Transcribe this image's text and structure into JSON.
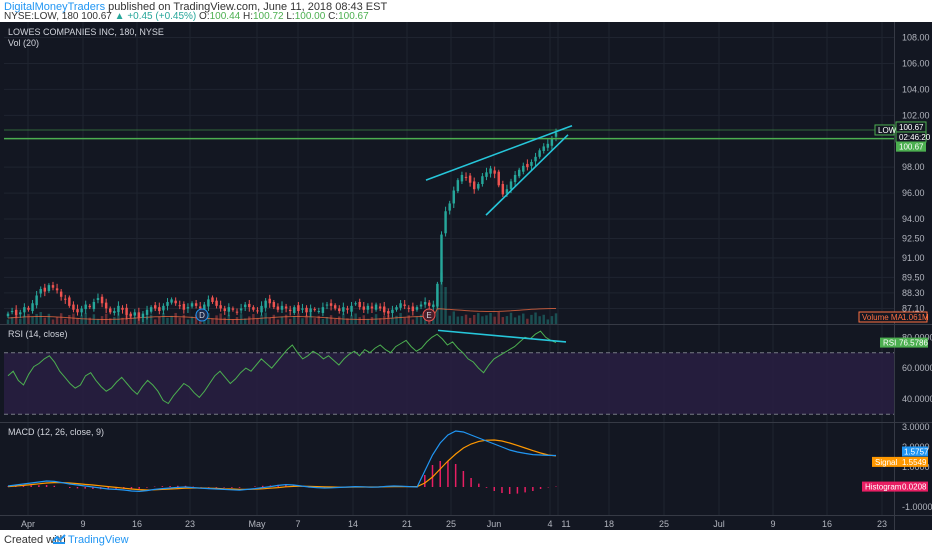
{
  "header": {
    "author": "DigitalMoneyTraders",
    "published": "published on TradingView.com, June 11, 2018 08:43 EST",
    "symbol": "NYSE:LOW, 180",
    "last": "100.67",
    "change": "▲ +0.45 (+0.45%)",
    "o_label": "O:",
    "o_value": "100.44",
    "h_label": "H:",
    "h_value": "100.72",
    "l_label": "L:",
    "l_value": "100.00",
    "c_label": "C:",
    "c_value": "100.67"
  },
  "footer": {
    "created": "Created with",
    "brand": "TradingView"
  },
  "colors": {
    "bg": "#131722",
    "grid": "#1f2430",
    "up": "#26a69a",
    "down": "#ef5350",
    "rsi": "#4caf50",
    "rsi_band": "#2a1f45",
    "macd": "#2196f3",
    "signal": "#ff9800",
    "hist": "#e91e63",
    "trendline": "#26c6da",
    "level": "#4caf50"
  },
  "chart_data": [
    {
      "type": "candlestick",
      "title": "LOWES COMPANIES INC, 180, NYSE",
      "subtitle": "Vol (20)",
      "x_ticks": [
        "Apr",
        "9",
        "16",
        "23",
        "May",
        "7",
        "14",
        "21",
        "25",
        "Jun",
        "4",
        "11",
        "18",
        "25",
        "Jul",
        "9",
        "16",
        "23"
      ],
      "y_ticks": [
        "108.00",
        "106.00",
        "104.00",
        "102.00",
        "98.00",
        "96.00",
        "94.00",
        "92.50",
        "91.00",
        "89.50",
        "88.30",
        "87.10"
      ],
      "ylim": [
        85.9,
        109.2
      ],
      "horizontal_levels": [
        100.87,
        100.2
      ],
      "markers": [
        "D",
        "E"
      ],
      "price_labels": [
        {
          "text": "LOW",
          "kind": "symbol"
        },
        {
          "text": "100.67",
          "kind": "last"
        },
        {
          "text": "02:46:20",
          "kind": "countdown"
        },
        {
          "text": "100.67",
          "kind": "level"
        }
      ],
      "volume_ma_label": "Volume MA",
      "volume_ma_value": "1.061M",
      "approx_closes": [
        86.7,
        86.9,
        86.6,
        86.8,
        87.2,
        87.0,
        87.5,
        88.1,
        88.6,
        88.4,
        88.9,
        88.7,
        88.5,
        88.0,
        87.8,
        87.3,
        87.0,
        86.8,
        87.1,
        87.4,
        87.2,
        87.6,
        87.9,
        87.5,
        87.1,
        86.8,
        86.9,
        87.3,
        87.0,
        86.6,
        86.5,
        86.8,
        86.4,
        86.7,
        87.0,
        87.2,
        87.1,
        86.9,
        87.3,
        87.6,
        87.8,
        87.5,
        87.3,
        87.0,
        87.2,
        87.5,
        87.3,
        87.1,
        87.4,
        87.8,
        87.6,
        87.3,
        87.1,
        86.9,
        87.2,
        87.0,
        86.8,
        87.1,
        87.4,
        87.2,
        87.0,
        86.9,
        87.3,
        87.7,
        87.5,
        87.2,
        87.0,
        87.3,
        87.1,
        86.9,
        87.2,
        86.9,
        87.1,
        86.8,
        87.1,
        87.0,
        86.9,
        87.2,
        87.4,
        87.3,
        87.1,
        86.9,
        87.2,
        87.0,
        87.3,
        87.5,
        87.2,
        87.0,
        87.3,
        87.1,
        87.4,
        87.1,
        86.8,
        86.7,
        87.0,
        87.2,
        87.5,
        87.3,
        87.1,
        86.9,
        87.2,
        87.4,
        87.6,
        87.3,
        87.4,
        89.0,
        92.8,
        94.6,
        95.2,
        96.2,
        97.0,
        97.4,
        97.2,
        96.8,
        96.3,
        96.7,
        97.3,
        97.6,
        97.9,
        97.5,
        96.6,
        95.9,
        96.3,
        96.9,
        97.4,
        97.8,
        98.1,
        98.0,
        98.4,
        98.8,
        99.3,
        99.6,
        99.8,
        100.2,
        100.67
      ],
      "volume_ma": 1.061
    },
    {
      "type": "line",
      "title": "RSI (14, close)",
      "series": [
        {
          "name": "RSI",
          "last": "76.5786"
        }
      ],
      "bands": [
        70,
        30
      ],
      "y_ticks": [
        "80.0000",
        "60.0000",
        "40.0000"
      ],
      "ylim": [
        25,
        88
      ],
      "approx_values": [
        55,
        58,
        52,
        49,
        56,
        61,
        63,
        66,
        68,
        64,
        58,
        54,
        50,
        47,
        49,
        55,
        57,
        52,
        48,
        45,
        47,
        51,
        54,
        50,
        46,
        43,
        48,
        52,
        49,
        45,
        39,
        37,
        42,
        46,
        50,
        48,
        44,
        41,
        45,
        50,
        55,
        58,
        54,
        50,
        53,
        57,
        60,
        58,
        62,
        66,
        63,
        60,
        64,
        68,
        72,
        75,
        70,
        66,
        68,
        71,
        69,
        66,
        68,
        65,
        62,
        66,
        69,
        71,
        68,
        72,
        70,
        73,
        75,
        72,
        70,
        74,
        76,
        78,
        74,
        71,
        73,
        77,
        80,
        82,
        79,
        75,
        77,
        73,
        70,
        66,
        64,
        60,
        57,
        62,
        66,
        68,
        70,
        72,
        74,
        77,
        80,
        79,
        82,
        84,
        80,
        78,
        76.58
      ]
    },
    {
      "type": "line",
      "title": "MACD (12, 26, close, 9)",
      "series": [
        {
          "name": "MACD",
          "last": "1.5757"
        },
        {
          "name": "Signal",
          "last": "1.5549"
        },
        {
          "name": "Histogram",
          "last": "0.0208"
        }
      ],
      "y_ticks": [
        "3.0000",
        "2.0000",
        "1.0000",
        "-1.0000"
      ],
      "ylim": [
        -1.4,
        3.2
      ],
      "approx_macd": [
        0.05,
        0.1,
        0.15,
        0.2,
        0.25,
        0.3,
        0.28,
        0.22,
        0.15,
        0.1,
        0.05,
        0.0,
        -0.05,
        -0.1,
        -0.12,
        -0.15,
        -0.2,
        -0.22,
        -0.18,
        -0.12,
        -0.08,
        -0.05,
        -0.02,
        0.0,
        -0.03,
        -0.06,
        -0.08,
        -0.1,
        -0.12,
        -0.14,
        -0.16,
        -0.12,
        -0.08,
        -0.03,
        0.02,
        0.08,
        0.12,
        0.1,
        0.05,
        0.0,
        -0.03,
        -0.05,
        -0.04,
        -0.02,
        0.0,
        0.02,
        0.01,
        -0.01,
        0.0,
        0.03,
        0.05,
        0.04,
        0.02,
        0.0,
        0.8,
        1.6,
        2.2,
        2.6,
        2.8,
        2.75,
        2.6,
        2.45,
        2.3,
        2.15,
        2.0,
        1.85,
        1.75,
        1.68,
        1.62,
        1.6,
        1.58,
        1.5757
      ],
      "approx_signal": [
        0.02,
        0.05,
        0.08,
        0.12,
        0.16,
        0.2,
        0.22,
        0.22,
        0.2,
        0.17,
        0.13,
        0.1,
        0.06,
        0.02,
        -0.02,
        -0.06,
        -0.1,
        -0.13,
        -0.15,
        -0.14,
        -0.12,
        -0.1,
        -0.08,
        -0.06,
        -0.05,
        -0.05,
        -0.06,
        -0.07,
        -0.09,
        -0.1,
        -0.12,
        -0.12,
        -0.11,
        -0.09,
        -0.06,
        -0.03,
        0.01,
        0.03,
        0.04,
        0.03,
        0.02,
        0.01,
        0.0,
        -0.01,
        -0.01,
        0.0,
        0.0,
        0.0,
        0.0,
        0.01,
        0.02,
        0.02,
        0.02,
        0.02,
        0.2,
        0.5,
        0.9,
        1.3,
        1.65,
        1.95,
        2.15,
        2.28,
        2.34,
        2.35,
        2.3,
        2.2,
        2.08,
        1.95,
        1.82,
        1.7,
        1.6,
        1.5549
      ],
      "approx_histogram": [
        0.03,
        0.05,
        0.07,
        0.08,
        0.09,
        0.1,
        0.06,
        0.0,
        -0.05,
        -0.07,
        -0.08,
        -0.1,
        -0.11,
        -0.12,
        -0.1,
        -0.09,
        -0.1,
        -0.09,
        -0.03,
        0.02,
        0.04,
        0.05,
        0.06,
        0.06,
        0.02,
        -0.01,
        -0.02,
        -0.03,
        -0.03,
        -0.04,
        -0.04,
        0.0,
        0.03,
        0.06,
        0.08,
        0.11,
        0.11,
        0.07,
        0.01,
        -0.03,
        -0.05,
        -0.06,
        -0.04,
        -0.01,
        0.01,
        0.02,
        0.01,
        -0.01,
        0.0,
        0.02,
        0.03,
        0.02,
        0.0,
        -0.02,
        0.6,
        1.1,
        1.3,
        1.3,
        1.15,
        0.8,
        0.45,
        0.17,
        -0.04,
        -0.2,
        -0.3,
        -0.35,
        -0.33,
        -0.27,
        -0.2,
        -0.1,
        -0.02,
        0.0208
      ]
    }
  ]
}
